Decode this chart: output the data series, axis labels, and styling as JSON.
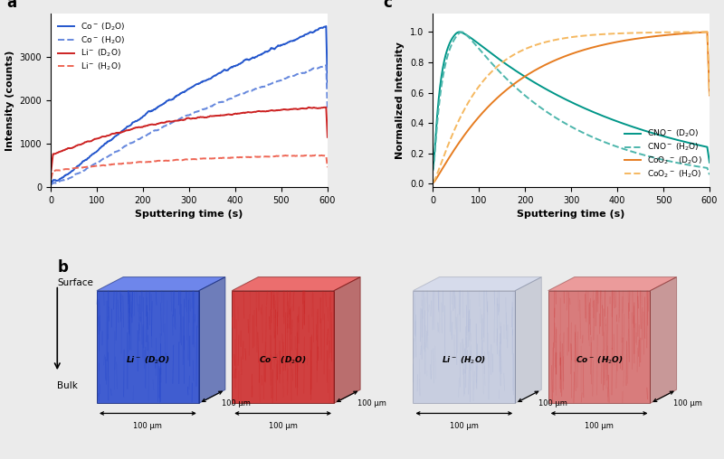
{
  "panel_a": {
    "xlabel": "Sputtering time (s)",
    "ylabel": "Intensity (counts)",
    "xlim": [
      0,
      600
    ],
    "ylim": [
      0,
      4000
    ],
    "yticks": [
      0,
      1000,
      2000,
      3000
    ],
    "co_d2o_color": "#2255CC",
    "co_h2o_color": "#6688DD",
    "li_d2o_color": "#CC2222",
    "li_h2o_color": "#EE6655"
  },
  "panel_c": {
    "xlabel": "Sputtering time (s)",
    "ylabel": "Normalized Intensity",
    "xlim": [
      0,
      600
    ],
    "ylim": [
      0.0,
      1.1
    ],
    "yticks": [
      0.0,
      0.2,
      0.4,
      0.6,
      0.8,
      1.0
    ],
    "cno_d2o_color": "#009688",
    "cno_h2o_color": "#4DB6AC",
    "coo2_d2o_color": "#E67C20",
    "coo2_h2o_color": "#F5B860"
  },
  "panel_b": {
    "boxes": [
      {
        "label": "Li⁻ (D₂O)",
        "base_color": "#2244CC",
        "alpha": 0.85,
        "is_faded": false
      },
      {
        "label": "Co⁻ (D₂O)",
        "base_color": "#CC2222",
        "alpha": 0.85,
        "is_faded": false
      },
      {
        "label": "Li⁻ (H₂O)",
        "base_color": "#8899CC",
        "alpha": 0.35,
        "is_faded": true
      },
      {
        "label": "Co⁻ (H₂O)",
        "base_color": "#CC3333",
        "alpha": 0.6,
        "is_faded": true
      }
    ]
  },
  "bg_color": "#EBEBEB"
}
